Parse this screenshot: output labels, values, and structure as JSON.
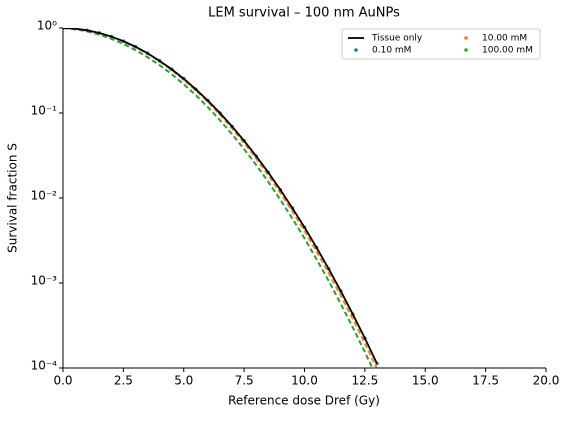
{
  "chart_data": {
    "type": "line",
    "title": "LEM survival – 100 nm AuNPs",
    "xlabel": "Reference dose Dref (Gy)",
    "ylabel": "Survival fraction S",
    "x": [
      0,
      0.5,
      1,
      1.5,
      2,
      2.5,
      3,
      3.5,
      4,
      4.5,
      5,
      5.5,
      6,
      6.5,
      7,
      7.5,
      8,
      8.5,
      9,
      9.5,
      10,
      10.5,
      11,
      11.5,
      12,
      12.5,
      13
    ],
    "series": [
      {
        "name": "Tissue only",
        "color": "#000000",
        "style": "solid",
        "values": [
          1,
          0.982,
          0.939,
          0.874,
          0.793,
          0.7,
          0.602,
          0.505,
          0.411,
          0.327,
          0.253,
          0.19,
          0.14,
          0.0999,
          0.0695,
          0.0471,
          0.0311,
          0.02,
          0.0125,
          0.00761,
          0.00452,
          0.00261,
          0.00147,
          0.000806,
          0.00043,
          0.000224,
          0.000113
        ]
      },
      {
        "name": "0.10 mM",
        "color": "#1f77b4",
        "style": "dots",
        "values": [
          1,
          0.982,
          0.939,
          0.874,
          0.793,
          0.7,
          0.602,
          0.505,
          0.411,
          0.327,
          0.253,
          0.19,
          0.14,
          0.0999,
          0.0695,
          0.0471,
          0.0311,
          0.02,
          0.0125,
          0.00761,
          0.00452,
          0.00261,
          0.00147,
          0.000806,
          0.00043,
          0.000224,
          0.000113
        ]
      },
      {
        "name": "10.00 mM",
        "color": "#ff7f0e",
        "style": "dashed",
        "values": [
          1,
          0.981,
          0.938,
          0.872,
          0.789,
          0.695,
          0.596,
          0.498,
          0.404,
          0.32,
          0.246,
          0.184,
          0.135,
          0.0954,
          0.0659,
          0.0443,
          0.0291,
          0.0186,
          0.0115,
          0.00696,
          0.0041,
          0.00235,
          0.00131,
          0.000714,
          0.000379,
          0.000195,
          9.8e-05
        ]
      },
      {
        "name": "100.00 mM",
        "color": "#2ca02c",
        "style": "dashed",
        "values": [
          1,
          0.967,
          0.911,
          0.836,
          0.747,
          0.65,
          0.55,
          0.454,
          0.365,
          0.286,
          0.218,
          0.162,
          0.117,
          0.0822,
          0.0563,
          0.0376,
          0.0244,
          0.0155,
          0.00953,
          0.00573,
          0.00335,
          0.0019,
          0.00106,
          0.00057,
          0.0003,
          0.000154,
          7.67e-05
        ]
      }
    ],
    "xlim": [
      0,
      20
    ],
    "xticks": [
      {
        "value": 0,
        "label": "0.0"
      },
      2.5,
      {
        "value": 5,
        "label": "5.0"
      },
      7.5,
      {
        "value": 10,
        "label": "10.0"
      },
      12.5,
      {
        "value": 15,
        "label": "15.0"
      },
      17.5,
      {
        "value": 20,
        "label": "20.0"
      }
    ],
    "ylim": [
      0.0001,
      1
    ],
    "ylog": true,
    "yticks": [
      {
        "value": 0.0001,
        "label": "10⁻⁴"
      },
      {
        "value": 0.001,
        "label": "10⁻³"
      },
      {
        "value": 0.01,
        "label": "10⁻²"
      },
      {
        "value": 0.1,
        "label": "10⁻¹"
      },
      {
        "value": 1,
        "label": "10⁰"
      }
    ],
    "legend": "upper right"
  }
}
